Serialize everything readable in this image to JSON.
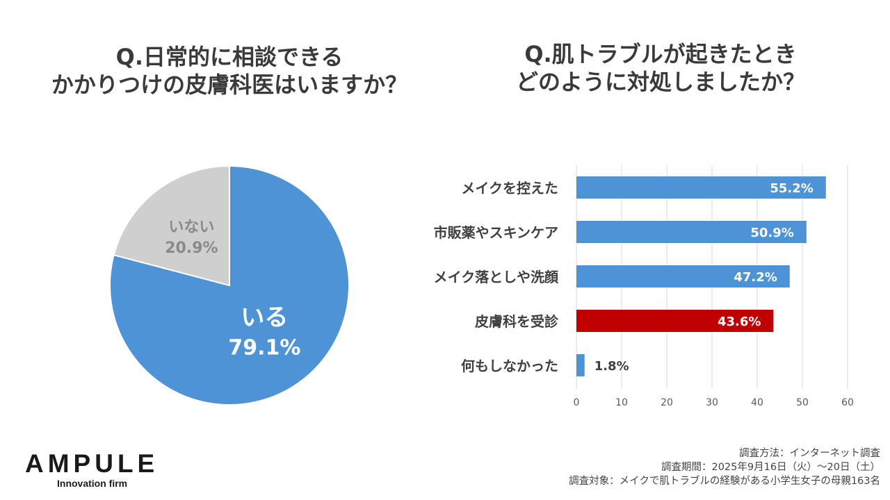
{
  "colors": {
    "blue": "#4E93D6",
    "gray": "#CFCFCF",
    "red": "#C00000",
    "grid": "#D9D9D9",
    "text": "#404040"
  },
  "left_title": [
    "Q.日常的に相談できる",
    "かかりつけの皮膚科医はいますか？"
  ],
  "right_title": [
    "Q.肌トラブルが起きたとき",
    "どのように対処しましたか？"
  ],
  "chart_data": [
    {
      "type": "pie",
      "title": "Q.日常的に相談できる かかりつけの皮膚科医はいますか？",
      "slices": [
        {
          "label": "いる",
          "value": 79.1,
          "display": "79.1%",
          "color": "#4E93D6"
        },
        {
          "label": "いない",
          "value": 20.9,
          "display": "20.9%",
          "color": "#CFCFCF"
        }
      ]
    },
    {
      "type": "bar",
      "orientation": "horizontal",
      "title": "Q.肌トラブルが起きたとき どのように対処しましたか？",
      "categories": [
        "メイクを控えた",
        "市販薬やスキンケア",
        "メイク落としや洗顔",
        "皮膚科を受診",
        "何もしなかった"
      ],
      "values": [
        55.2,
        50.9,
        47.2,
        43.6,
        1.8
      ],
      "labels": [
        "55.2%",
        "50.9%",
        "47.2%",
        "43.6%",
        "1.8%"
      ],
      "highlight_index": 3,
      "xlim": [
        0,
        60
      ],
      "ticks": [
        0,
        10,
        20,
        30,
        40,
        50,
        60
      ],
      "tick_labels": [
        "0",
        "10",
        "20",
        "30",
        "40",
        "50",
        "60"
      ],
      "grid": true
    }
  ],
  "brand": {
    "name": "AMPULE",
    "tagline": "Innovation firm"
  },
  "survey_notes": [
    "調査方法：インターネット調査",
    "調査期間：2025年9月16日（火）～20日（土）",
    "調査対象：メイクで肌トラブルの経験がある小学生女子の母親163名"
  ]
}
